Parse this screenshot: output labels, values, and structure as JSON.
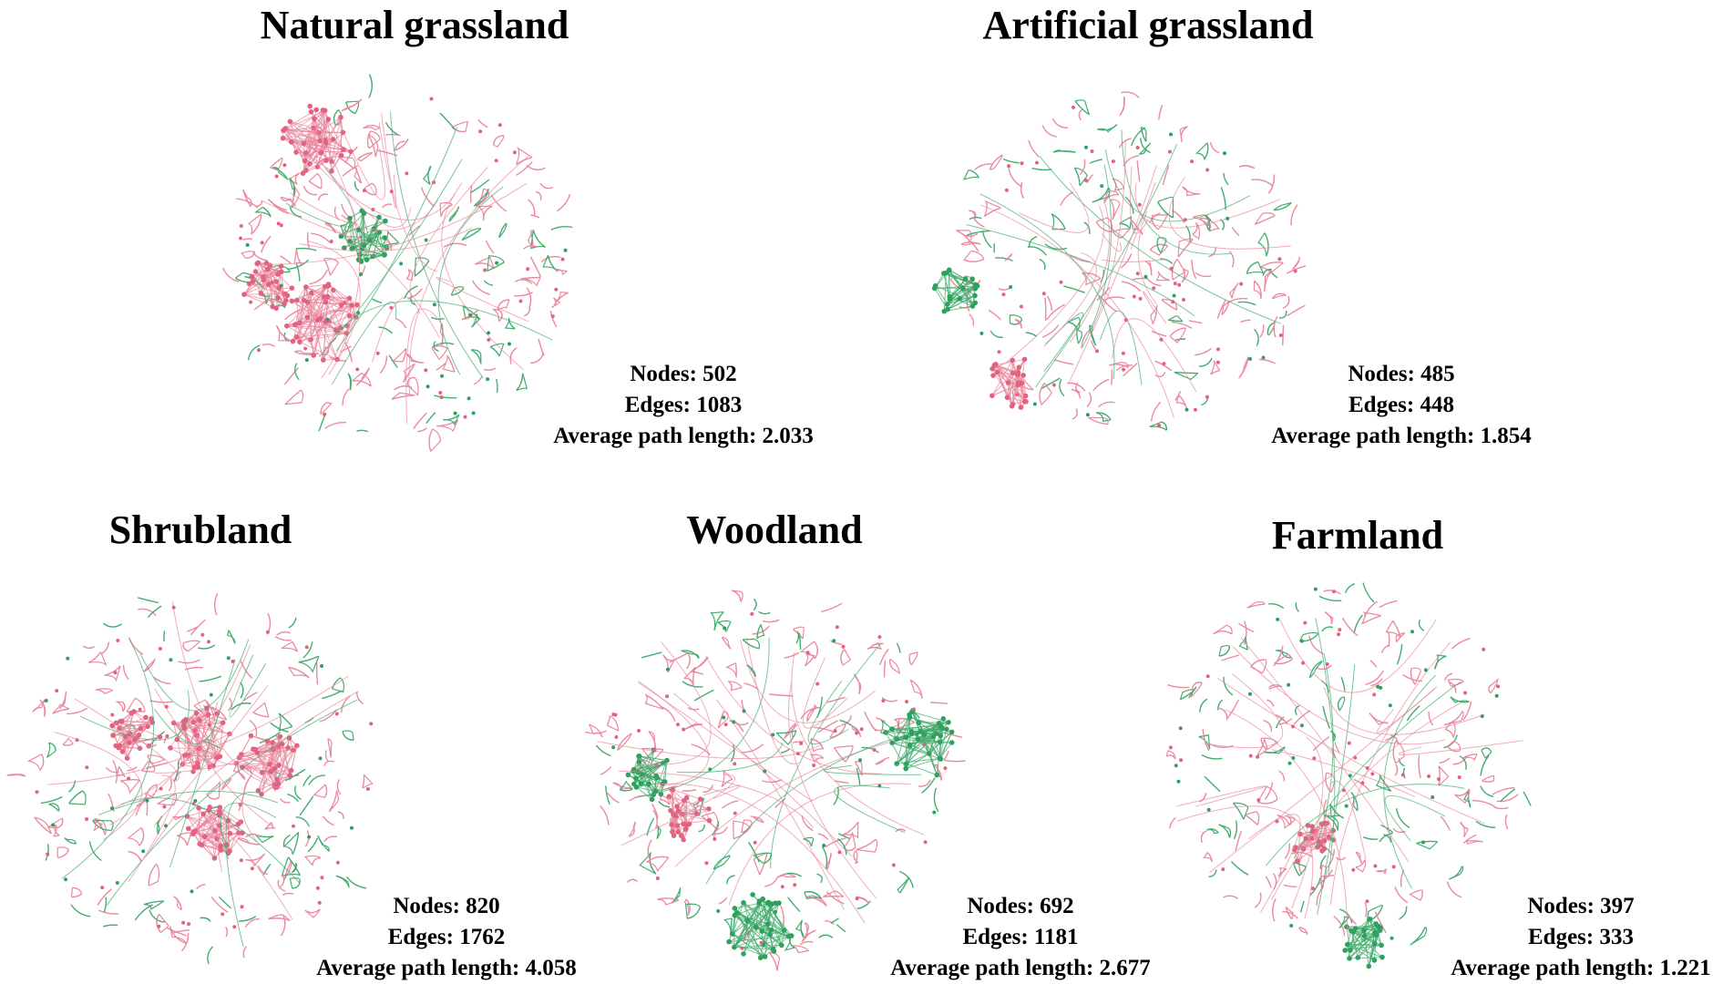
{
  "networks": [
    {
      "id": "natural",
      "title": "Natural grassland",
      "nodes_label": "Nodes: 502",
      "edges_label": "Edges: 1083",
      "apl_label": "Average path length: 2.033",
      "clusters": [
        {
          "color": "pink",
          "size": 1.0
        },
        {
          "color": "pink",
          "size": 0.85
        },
        {
          "color": "pink",
          "size": 0.6
        },
        {
          "color": "green",
          "size": 0.55
        }
      ]
    },
    {
      "id": "artificial",
      "title": "Artificial grassland",
      "nodes_label": "Nodes: 485",
      "edges_label": "Edges: 448",
      "apl_label": "Average path length: 1.854",
      "clusters": [
        {
          "color": "pink",
          "size": 0.5
        },
        {
          "color": "green",
          "size": 0.4
        }
      ]
    },
    {
      "id": "shrubland",
      "title": "Shrubland",
      "nodes_label": "Nodes: 820",
      "edges_label": "Edges: 1762",
      "apl_label": "Average path length: 4.058",
      "clusters": [
        {
          "color": "pink",
          "size": 0.8
        },
        {
          "color": "pink",
          "size": 0.75
        },
        {
          "color": "pink",
          "size": 0.7
        },
        {
          "color": "pink",
          "size": 0.6
        }
      ]
    },
    {
      "id": "woodland",
      "title": "Woodland",
      "nodes_label": "Nodes: 692",
      "edges_label": "Edges: 1181",
      "apl_label": "Average path length: 2.677",
      "clusters": [
        {
          "color": "green",
          "size": 0.9
        },
        {
          "color": "green",
          "size": 0.8
        },
        {
          "color": "pink",
          "size": 0.55
        },
        {
          "color": "green",
          "size": 0.5
        }
      ]
    },
    {
      "id": "farmland",
      "title": "Farmland",
      "nodes_label": "Nodes: 397",
      "edges_label": "Edges: 333",
      "apl_label": "Average path length: 1.221",
      "clusters": [
        {
          "color": "pink",
          "size": 0.45
        },
        {
          "color": "green",
          "size": 0.45
        }
      ]
    }
  ],
  "colors": {
    "pink": "#e2637f",
    "green": "#2fa05e",
    "pink_edge": "#e98aa0",
    "green_edge": "#43ad6e"
  }
}
